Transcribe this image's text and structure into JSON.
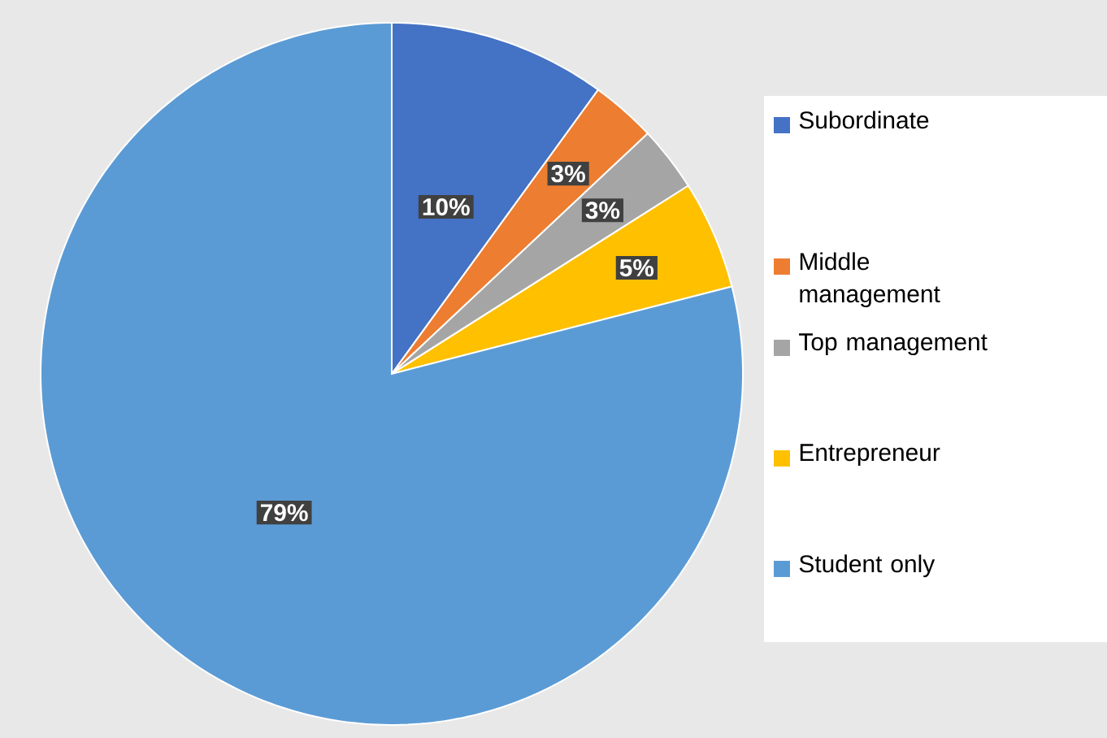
{
  "chart_data": {
    "type": "pie",
    "categories": [
      "Subordinate",
      "Middle management",
      "Top management",
      "Entrepreneur",
      "Student only"
    ],
    "values": [
      10,
      3,
      3,
      5,
      79
    ],
    "colors": [
      "#4472c4",
      "#ed7d31",
      "#a5a5a5",
      "#ffc000",
      "#5b9bd5"
    ],
    "value_labels": [
      "10%",
      "3%",
      "3%",
      "5%",
      "79%"
    ],
    "legend": "right"
  }
}
